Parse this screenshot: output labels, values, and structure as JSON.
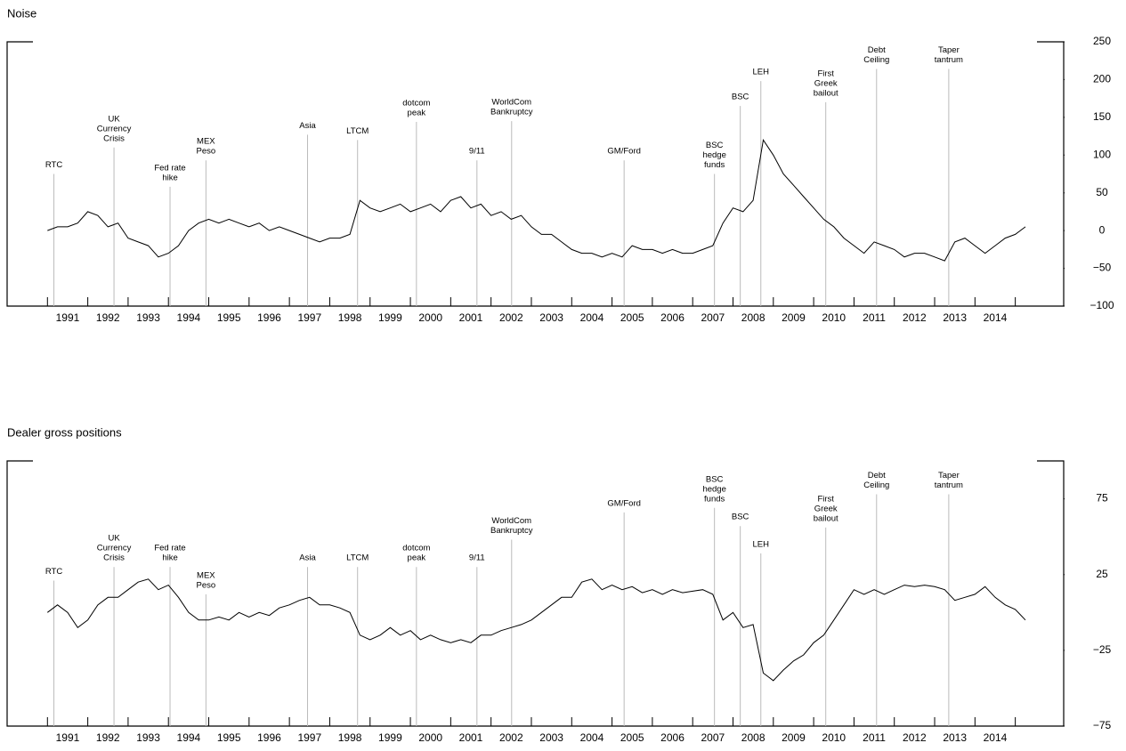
{
  "chart_data": [
    {
      "type": "line",
      "title": "Noise",
      "xlim": [
        1990,
        2016.2
      ],
      "ylim": [
        -100,
        250
      ],
      "yticks": [
        250,
        200,
        150,
        100,
        50,
        0,
        {
          "value": -50,
          "label": "−50"
        },
        {
          "value": -100,
          "label": "−100"
        }
      ],
      "xticks": [
        {
          "value": 1991.5,
          "label": "1991"
        },
        {
          "value": 1992.5,
          "label": "1992"
        },
        {
          "value": 1993.5,
          "label": "1993"
        },
        {
          "value": 1994.5,
          "label": "1994"
        },
        {
          "value": 1995.5,
          "label": "1995"
        },
        {
          "value": 1996.5,
          "label": "1996"
        },
        {
          "value": 1997.5,
          "label": "1997"
        },
        {
          "value": 1998.5,
          "label": "1998"
        },
        {
          "value": 1999.5,
          "label": "1999"
        },
        {
          "value": 2000.5,
          "label": "2000"
        },
        {
          "value": 2001.5,
          "label": "2001"
        },
        {
          "value": 2002.5,
          "label": "2002"
        },
        {
          "value": 2003.5,
          "label": "2003"
        },
        {
          "value": 2004.5,
          "label": "2004"
        },
        {
          "value": 2005.5,
          "label": "2005"
        },
        {
          "value": 2006.5,
          "label": "2006"
        },
        {
          "value": 2007.5,
          "label": "2007"
        },
        {
          "value": 2008.5,
          "label": "2008"
        },
        {
          "value": 2009.5,
          "label": "2009"
        },
        {
          "value": 2010.5,
          "label": "2010"
        },
        {
          "value": 2011.5,
          "label": "2011"
        },
        {
          "value": 2012.5,
          "label": "2012"
        },
        {
          "value": 2013.5,
          "label": "2013"
        },
        {
          "value": 2014.5,
          "label": "2014"
        }
      ],
      "x": [
        1991,
        1991.25,
        1991.5,
        1991.75,
        1992,
        1992.25,
        1992.5,
        1992.75,
        1993,
        1993.25,
        1993.5,
        1993.75,
        1994,
        1994.25,
        1994.5,
        1994.75,
        1995,
        1995.25,
        1995.5,
        1995.75,
        1996,
        1996.25,
        1996.5,
        1996.75,
        1997,
        1997.25,
        1997.5,
        1997.75,
        1998,
        1998.25,
        1998.5,
        1998.75,
        1999,
        1999.25,
        1999.5,
        1999.75,
        2000,
        2000.25,
        2000.5,
        2000.75,
        2001,
        2001.25,
        2001.5,
        2001.75,
        2002,
        2002.25,
        2002.5,
        2002.75,
        2003,
        2003.25,
        2003.5,
        2003.75,
        2004,
        2004.25,
        2004.5,
        2004.75,
        2005,
        2005.25,
        2005.5,
        2005.75,
        2006,
        2006.25,
        2006.5,
        2006.75,
        2007,
        2007.25,
        2007.5,
        2007.75,
        2008,
        2008.25,
        2008.5,
        2008.75,
        2009,
        2009.25,
        2009.5,
        2009.75,
        2010,
        2010.25,
        2010.5,
        2010.75,
        2011,
        2011.25,
        2011.5,
        2011.75,
        2012,
        2012.25,
        2012.5,
        2012.75,
        2013,
        2013.25,
        2013.5,
        2013.75,
        2014,
        2014.25,
        2014.5,
        2014.75,
        2015,
        2015.25
      ],
      "series": [
        {
          "color": "#000000",
          "values": [
            0,
            5,
            5,
            10,
            25,
            20,
            5,
            10,
            -10,
            -15,
            -20,
            -35,
            -30,
            -20,
            0,
            10,
            15,
            10,
            15,
            10,
            5,
            10,
            0,
            5,
            0,
            -5,
            -10,
            -15,
            -10,
            -10,
            -5,
            40,
            30,
            25,
            30,
            35,
            25,
            30,
            35,
            25,
            40,
            45,
            30,
            35,
            20,
            25,
            15,
            20,
            5,
            -5,
            -5,
            -15,
            -25,
            -30,
            -30,
            -35,
            -30,
            -35,
            -20,
            -25,
            -25,
            -30,
            -25,
            -30,
            -30,
            -25,
            -20,
            10,
            30,
            25,
            40,
            120,
            100,
            75,
            60,
            45,
            30,
            15,
            5,
            -10,
            -20,
            -30,
            -15,
            -20,
            -25,
            -35,
            -30,
            -30,
            -35,
            -40,
            -15,
            -10,
            -20,
            -30,
            -20,
            -10,
            -5,
            5
          ]
        }
      ],
      "events": [
        {
          "label": [
            "RTC"
          ],
          "x": 1991.16,
          "y": 75
        },
        {
          "label": [
            "UK",
            "Currency",
            "Crisis"
          ],
          "x": 1992.65,
          "y": 110
        },
        {
          "label": [
            "Fed rate",
            "hike"
          ],
          "x": 1994.04,
          "y": 58
        },
        {
          "label": [
            "MEX",
            "Peso"
          ],
          "x": 1994.93,
          "y": 93
        },
        {
          "label": [
            "Asia"
          ],
          "x": 1997.45,
          "y": 127
        },
        {
          "label": [
            "LTCM"
          ],
          "x": 1998.69,
          "y": 120
        },
        {
          "label": [
            "dotcom",
            "peak"
          ],
          "x": 2000.15,
          "y": 144
        },
        {
          "label": [
            "9/11"
          ],
          "x": 2001.65,
          "y": 93
        },
        {
          "label": [
            "WorldCom",
            "Bankruptcy"
          ],
          "x": 2002.51,
          "y": 145
        },
        {
          "label": [
            "GM/Ford"
          ],
          "x": 2005.3,
          "y": 93
        },
        {
          "label": [
            "BSC",
            "hedge",
            "funds"
          ],
          "x": 2007.54,
          "y": 75
        },
        {
          "label": [
            "BSC"
          ],
          "x": 2008.18,
          "y": 165
        },
        {
          "label": [
            "LEH"
          ],
          "x": 2008.69,
          "y": 198
        },
        {
          "label": [
            "First",
            "Greek",
            "bailout"
          ],
          "x": 2010.3,
          "y": 170
        },
        {
          "label": [
            "Debt",
            "Ceiling"
          ],
          "x": 2011.56,
          "y": 214
        },
        {
          "label": [
            "Taper",
            "tantrum"
          ],
          "x": 2013.35,
          "y": 214
        }
      ]
    },
    {
      "type": "line",
      "title": "Dealer gross positions",
      "xlim": [
        1990,
        2016.2
      ],
      "ylim": [
        -75,
        100
      ],
      "yticks": [
        75,
        25,
        {
          "value": -25,
          "label": "−25"
        },
        {
          "value": -75,
          "label": "−75"
        }
      ],
      "xticks": [
        {
          "value": 1991.5,
          "label": "1991"
        },
        {
          "value": 1992.5,
          "label": "1992"
        },
        {
          "value": 1993.5,
          "label": "1993"
        },
        {
          "value": 1994.5,
          "label": "1994"
        },
        {
          "value": 1995.5,
          "label": "1995"
        },
        {
          "value": 1996.5,
          "label": "1996"
        },
        {
          "value": 1997.5,
          "label": "1997"
        },
        {
          "value": 1998.5,
          "label": "1998"
        },
        {
          "value": 1999.5,
          "label": "1999"
        },
        {
          "value": 2000.5,
          "label": "2000"
        },
        {
          "value": 2001.5,
          "label": "2001"
        },
        {
          "value": 2002.5,
          "label": "2002"
        },
        {
          "value": 2003.5,
          "label": "2003"
        },
        {
          "value": 2004.5,
          "label": "2004"
        },
        {
          "value": 2005.5,
          "label": "2005"
        },
        {
          "value": 2006.5,
          "label": "2006"
        },
        {
          "value": 2007.5,
          "label": "2007"
        },
        {
          "value": 2008.5,
          "label": "2008"
        },
        {
          "value": 2009.5,
          "label": "2009"
        },
        {
          "value": 2010.5,
          "label": "2010"
        },
        {
          "value": 2011.5,
          "label": "2011"
        },
        {
          "value": 2012.5,
          "label": "2012"
        },
        {
          "value": 2013.5,
          "label": "2013"
        },
        {
          "value": 2014.5,
          "label": "2014"
        }
      ],
      "x": [
        1991,
        1991.25,
        1991.5,
        1991.75,
        1992,
        1992.25,
        1992.5,
        1992.75,
        1993,
        1993.25,
        1993.5,
        1993.75,
        1994,
        1994.25,
        1994.5,
        1994.75,
        1995,
        1995.25,
        1995.5,
        1995.75,
        1996,
        1996.25,
        1996.5,
        1996.75,
        1997,
        1997.25,
        1997.5,
        1997.75,
        1998,
        1998.25,
        1998.5,
        1998.75,
        1999,
        1999.25,
        1999.5,
        1999.75,
        2000,
        2000.25,
        2000.5,
        2000.75,
        2001,
        2001.25,
        2001.5,
        2001.75,
        2002,
        2002.25,
        2002.5,
        2002.75,
        2003,
        2003.25,
        2003.5,
        2003.75,
        2004,
        2004.25,
        2004.5,
        2004.75,
        2005,
        2005.25,
        2005.5,
        2005.75,
        2006,
        2006.25,
        2006.5,
        2006.75,
        2007,
        2007.25,
        2007.5,
        2007.75,
        2008,
        2008.25,
        2008.5,
        2008.75,
        2009,
        2009.25,
        2009.5,
        2009.75,
        2010,
        2010.25,
        2010.5,
        2010.75,
        2011,
        2011.25,
        2011.5,
        2011.75,
        2012,
        2012.25,
        2012.5,
        2012.75,
        2013,
        2013.25,
        2013.5,
        2013.75,
        2014,
        2014.25,
        2014.5,
        2014.75,
        2015,
        2015.25
      ],
      "series": [
        {
          "color": "#000000",
          "values": [
            0,
            5,
            0,
            -10,
            -5,
            5,
            10,
            10,
            15,
            20,
            22,
            15,
            18,
            10,
            0,
            -5,
            -5,
            -3,
            -5,
            0,
            -3,
            0,
            -2,
            3,
            5,
            8,
            10,
            5,
            5,
            3,
            0,
            -15,
            -18,
            -15,
            -10,
            -15,
            -12,
            -18,
            -15,
            -18,
            -20,
            -18,
            -20,
            -15,
            -15,
            -12,
            -10,
            -8,
            -5,
            0,
            5,
            10,
            10,
            20,
            22,
            15,
            18,
            15,
            17,
            13,
            15,
            12,
            15,
            13,
            14,
            15,
            12,
            -5,
            0,
            -10,
            -8,
            -40,
            -45,
            -38,
            -32,
            -28,
            -20,
            -15,
            -5,
            5,
            15,
            12,
            15,
            12,
            15,
            18,
            17,
            18,
            17,
            15,
            8,
            10,
            12,
            17,
            10,
            5,
            2,
            -5
          ]
        }
      ],
      "events": [
        {
          "label": [
            "RTC"
          ],
          "x": 1991.16,
          "y": 21
        },
        {
          "label": [
            "UK",
            "Currency",
            "Crisis"
          ],
          "x": 1992.65,
          "y": 30
        },
        {
          "label": [
            "Fed rate",
            "hike"
          ],
          "x": 1994.04,
          "y": 30
        },
        {
          "label": [
            "MEX",
            "Peso"
          ],
          "x": 1994.93,
          "y": 12
        },
        {
          "label": [
            "Asia"
          ],
          "x": 1997.45,
          "y": 30
        },
        {
          "label": [
            "LTCM"
          ],
          "x": 1998.69,
          "y": 30
        },
        {
          "label": [
            "dotcom",
            "peak"
          ],
          "x": 2000.15,
          "y": 30
        },
        {
          "label": [
            "9/11"
          ],
          "x": 2001.65,
          "y": 30
        },
        {
          "label": [
            "WorldCom",
            "Bankruptcy"
          ],
          "x": 2002.51,
          "y": 48
        },
        {
          "label": [
            "GM/Ford"
          ],
          "x": 2005.3,
          "y": 66
        },
        {
          "label": [
            "BSC",
            "hedge",
            "funds"
          ],
          "x": 2007.54,
          "y": 69
        },
        {
          "label": [
            "BSC"
          ],
          "x": 2008.18,
          "y": 57
        },
        {
          "label": [
            "LEH"
          ],
          "x": 2008.69,
          "y": 39
        },
        {
          "label": [
            "First",
            "Greek",
            "bailout"
          ],
          "x": 2010.3,
          "y": 56
        },
        {
          "label": [
            "Debt",
            "Ceiling"
          ],
          "x": 2011.56,
          "y": 78
        },
        {
          "label": [
            "Taper",
            "tantrum"
          ],
          "x": 2013.35,
          "y": 78
        }
      ]
    }
  ]
}
